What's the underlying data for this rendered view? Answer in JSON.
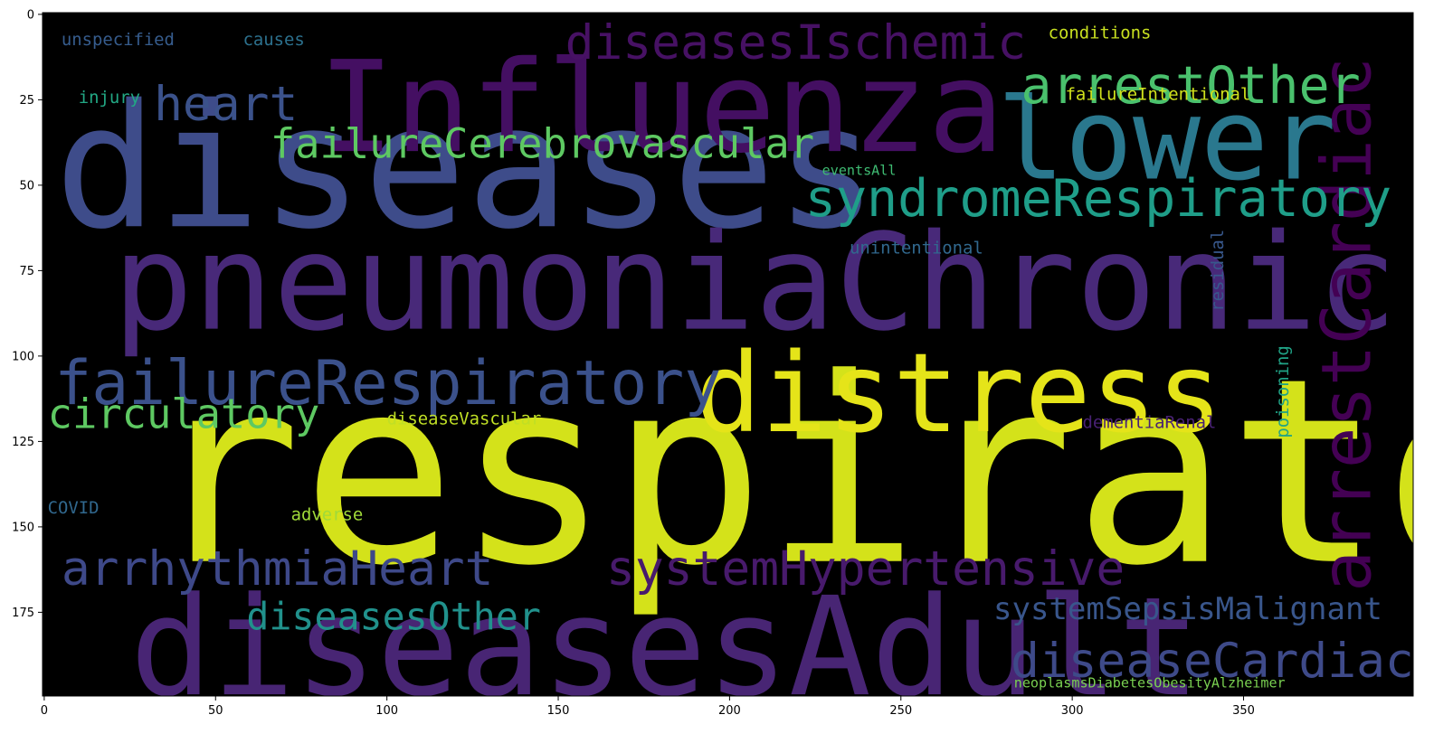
{
  "chart_data": {
    "type": "wordcloud",
    "title": "",
    "xlabel": "",
    "ylabel": "",
    "xlim": [
      -0.5,
      399.5
    ],
    "ylim": [
      199.5,
      -0.5
    ],
    "x_ticks": [
      0,
      50,
      100,
      150,
      200,
      250,
      300,
      350
    ],
    "y_ticks": [
      0,
      25,
      50,
      75,
      100,
      125,
      150,
      175
    ],
    "x_tick_labels": [
      "0",
      "50",
      "100",
      "150",
      "200",
      "250",
      "300",
      "350"
    ],
    "y_tick_labels": [
      "0",
      "25",
      "50",
      "75",
      "100",
      "125",
      "150",
      "175"
    ],
    "background": "#000000",
    "words": [
      {
        "text": "respiratory",
        "x": 30,
        "y": 160,
        "size": 75,
        "color": "#d4e21a",
        "rotate": 0
      },
      {
        "text": "diseases",
        "x": 3,
        "y": 62,
        "size": 50,
        "color": "#3e4c8a",
        "rotate": 0
      },
      {
        "text": "pneumoniaChronic",
        "x": 20,
        "y": 92,
        "size": 39,
        "color": "#482979",
        "rotate": 0
      },
      {
        "text": "Influenza",
        "x": 80,
        "y": 40,
        "size": 37,
        "color": "#440f62",
        "rotate": 0
      },
      {
        "text": "diseasesAdult",
        "x": 25,
        "y": 199,
        "size": 40,
        "color": "#482574",
        "rotate": 0
      },
      {
        "text": "distress",
        "x": 190,
        "y": 122,
        "size": 32,
        "color": "#e5e419",
        "rotate": 0
      },
      {
        "text": "lower",
        "x": 278,
        "y": 48,
        "size": 33,
        "color": "#2a788e",
        "rotate": 0
      },
      {
        "text": "failureRespiratory",
        "x": 3,
        "y": 114,
        "size": 18,
        "color": "#3b518b",
        "rotate": 0
      },
      {
        "text": "arrestCardiac",
        "x": 387,
        "y": 169,
        "size": 20,
        "color": "#440154",
        "rotate": -90
      },
      {
        "text": "syndromeRespiratory",
        "x": 222,
        "y": 59,
        "size": 15,
        "color": "#1f9e89",
        "rotate": 0
      },
      {
        "text": "failureCerebrovascular",
        "x": 66,
        "y": 42,
        "size": 12,
        "color": "#5ec962",
        "rotate": 0
      },
      {
        "text": "arrestOther",
        "x": 285,
        "y": 26,
        "size": 15,
        "color": "#4ac16d",
        "rotate": 0
      },
      {
        "text": "diseasesIschemic",
        "x": 152,
        "y": 13,
        "size": 14,
        "color": "#471164",
        "rotate": 0
      },
      {
        "text": "heart",
        "x": 32,
        "y": 31,
        "size": 14,
        "color": "#3b528b",
        "rotate": 0
      },
      {
        "text": "arrhythmiaHeart",
        "x": 5,
        "y": 167,
        "size": 14,
        "color": "#3e4989",
        "rotate": 0
      },
      {
        "text": "systemHypertensive",
        "x": 164,
        "y": 167,
        "size": 14,
        "color": "#481a6c",
        "rotate": 0
      },
      {
        "text": "diseasesOther",
        "x": 59,
        "y": 180,
        "size": 11,
        "color": "#21918c",
        "rotate": 0
      },
      {
        "text": "diseaseCardiac",
        "x": 282,
        "y": 194,
        "size": 14,
        "color": "#3e4a89",
        "rotate": 0
      },
      {
        "text": "systemSepsisMalignant",
        "x": 277,
        "y": 177,
        "size": 9,
        "color": "#39568c",
        "rotate": 0
      },
      {
        "text": "circulatory",
        "x": 1,
        "y": 121,
        "size": 12,
        "color": "#5ec962",
        "rotate": 0
      },
      {
        "text": "unspecified",
        "x": 5,
        "y": 9,
        "size": 5,
        "color": "#365c8d",
        "rotate": 0
      },
      {
        "text": "causes",
        "x": 58,
        "y": 9,
        "size": 5,
        "color": "#2c718e",
        "rotate": 0
      },
      {
        "text": "conditions",
        "x": 293,
        "y": 7,
        "size": 5,
        "color": "#c8e020",
        "rotate": 0
      },
      {
        "text": "injury",
        "x": 10,
        "y": 26,
        "size": 5,
        "color": "#22a884",
        "rotate": 0
      },
      {
        "text": "failureIntentional",
        "x": 298,
        "y": 25,
        "size": 5,
        "color": "#d0e11c",
        "rotate": 0
      },
      {
        "text": "eventsAll",
        "x": 227,
        "y": 47,
        "size": 4,
        "color": "#3fbc73",
        "rotate": 0
      },
      {
        "text": "unintentional",
        "x": 235,
        "y": 70,
        "size": 5,
        "color": "#31688e",
        "rotate": 0
      },
      {
        "text": "residual",
        "x": 344,
        "y": 87,
        "size": 5,
        "color": "#38588c",
        "rotate": -90
      },
      {
        "text": "poisoning",
        "x": 363,
        "y": 124,
        "size": 5,
        "color": "#20a386",
        "rotate": -90
      },
      {
        "text": "diseaseVascular",
        "x": 100,
        "y": 120,
        "size": 5,
        "color": "#c0df25",
        "rotate": 0
      },
      {
        "text": "dementiaRenal",
        "x": 303,
        "y": 121,
        "size": 5,
        "color": "#482173",
        "rotate": 0
      },
      {
        "text": "COVID",
        "x": 1,
        "y": 146,
        "size": 5,
        "color": "#31688e",
        "rotate": 0
      },
      {
        "text": "adverse",
        "x": 72,
        "y": 148,
        "size": 5,
        "color": "#a0da39",
        "rotate": 0
      },
      {
        "text": "neoplasmsDiabetesObesityAlzheimer",
        "x": 283,
        "y": 197,
        "size": 4,
        "color": "#7ad151",
        "rotate": 0
      }
    ]
  }
}
